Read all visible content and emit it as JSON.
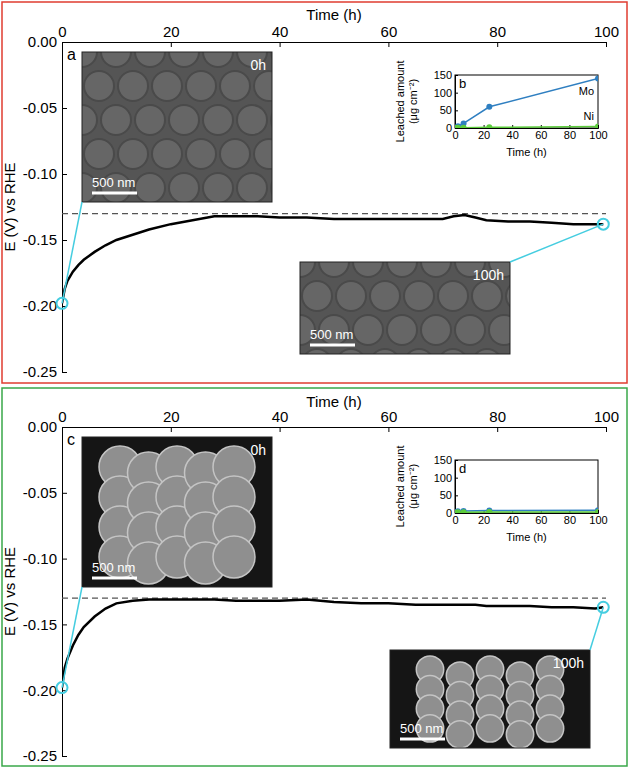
{
  "chart_data": [
    {
      "type": "line",
      "panel": "a",
      "x_label": "Time (h)",
      "y_label": "E (V) vs RHE",
      "x": [
        0,
        0.5,
        1,
        2,
        3,
        4,
        6,
        8,
        10,
        13,
        16,
        20,
        24,
        28,
        32,
        36,
        40,
        45,
        50,
        55,
        60,
        65,
        70,
        72,
        74,
        76,
        78,
        82,
        86,
        90,
        94,
        98,
        99.5
      ],
      "series": [
        {
          "color": "#000000",
          "values": [
            -0.198,
            -0.187,
            -0.181,
            -0.174,
            -0.169,
            -0.165,
            -0.159,
            -0.154,
            -0.15,
            -0.146,
            -0.142,
            -0.138,
            -0.135,
            -0.132,
            -0.132,
            -0.132,
            -0.133,
            -0.133,
            -0.134,
            -0.134,
            -0.134,
            -0.134,
            -0.134,
            -0.132,
            -0.131,
            -0.133,
            -0.135,
            -0.136,
            -0.136,
            -0.137,
            -0.138,
            -0.138,
            -0.138
          ]
        }
      ],
      "xlim": [
        0,
        100
      ],
      "xticks": [
        0,
        20,
        40,
        60,
        80,
        100
      ],
      "ylim": [
        -0.25,
        0
      ],
      "yticks": [
        {
          "value": -0.25,
          "label": "-0.25"
        },
        {
          "value": -0.2,
          "label": "-0.20"
        },
        {
          "value": -0.15,
          "label": "-0.15"
        },
        {
          "value": -0.1,
          "label": "-0.10"
        },
        {
          "value": -0.05,
          "label": "-0.05"
        },
        {
          "value": 0,
          "label": "0.00"
        }
      ],
      "reference_line": -0.13,
      "images": [
        {
          "label": "0h",
          "scale_bar": "500 nm"
        },
        {
          "label": "100h",
          "scale_bar": "500 nm"
        }
      ]
    },
    {
      "type": "line",
      "panel": "b",
      "x_label": "Time (h)",
      "y_label": "Leached amount (μg cm⁻²)",
      "x": [
        0,
        2,
        6,
        24,
        100
      ],
      "series": [
        {
          "name": "Mo",
          "color": "#2f7fc1",
          "marker": "circle",
          "values": [
            0,
            5,
            13,
            60,
            140
          ]
        },
        {
          "name": "Ni",
          "color": "#5ccc3c",
          "marker": "circle",
          "values": [
            0,
            0.5,
            1,
            2,
            4
          ]
        }
      ],
      "xlim": [
        0,
        100
      ],
      "xticks": [
        0,
        20,
        40,
        60,
        80,
        100
      ],
      "ylim": [
        0,
        150
      ],
      "yticks": [
        0,
        50,
        100,
        150
      ]
    },
    {
      "type": "line",
      "panel": "c",
      "x_label": "Time (h)",
      "y_label": "E (V) vs RHE",
      "x": [
        0,
        0.5,
        1,
        2,
        3,
        4,
        6,
        8,
        10,
        13,
        16,
        20,
        24,
        28,
        32,
        36,
        40,
        45,
        50,
        55,
        60,
        65,
        70,
        72,
        74,
        76,
        78,
        82,
        86,
        90,
        94,
        98,
        99.5
      ],
      "series": [
        {
          "color": "#000000",
          "values": [
            -0.198,
            -0.183,
            -0.176,
            -0.166,
            -0.158,
            -0.152,
            -0.144,
            -0.138,
            -0.134,
            -0.132,
            -0.131,
            -0.131,
            -0.131,
            -0.131,
            -0.132,
            -0.132,
            -0.132,
            -0.131,
            -0.133,
            -0.134,
            -0.134,
            -0.135,
            -0.135,
            -0.135,
            -0.135,
            -0.135,
            -0.136,
            -0.136,
            -0.136,
            -0.137,
            -0.137,
            -0.138,
            -0.137
          ]
        }
      ],
      "xlim": [
        0,
        100
      ],
      "xticks": [
        0,
        20,
        40,
        60,
        80,
        100
      ],
      "ylim": [
        -0.25,
        0
      ],
      "yticks": [
        {
          "value": -0.25,
          "label": "-0.25"
        },
        {
          "value": -0.2,
          "label": "-0.20"
        },
        {
          "value": -0.15,
          "label": "-0.15"
        },
        {
          "value": -0.1,
          "label": "-0.10"
        },
        {
          "value": -0.05,
          "label": "-0.05"
        },
        {
          "value": 0,
          "label": "0.00"
        }
      ],
      "reference_line": -0.13,
      "images": [
        {
          "label": "0h",
          "scale_bar": "500 nm"
        },
        {
          "label": "100h",
          "scale_bar": "500 nm"
        }
      ]
    },
    {
      "type": "line",
      "panel": "d",
      "x_label": "Time (h)",
      "y_label": "Leached amount (μg cm⁻²)",
      "x": [
        0,
        2,
        6,
        24,
        100
      ],
      "series": [
        {
          "color": "#2f7fc1",
          "marker": "circle",
          "values": [
            2,
            5,
            6,
            7,
            8
          ]
        },
        {
          "color": "#5ccc3c",
          "marker": "circle",
          "values": [
            1,
            2,
            2,
            3,
            3
          ]
        }
      ],
      "xlim": [
        0,
        100
      ],
      "xticks": [
        0,
        20,
        40,
        60,
        80,
        100
      ],
      "ylim": [
        0,
        150
      ],
      "yticks": [
        0,
        50,
        100,
        150
      ]
    }
  ]
}
